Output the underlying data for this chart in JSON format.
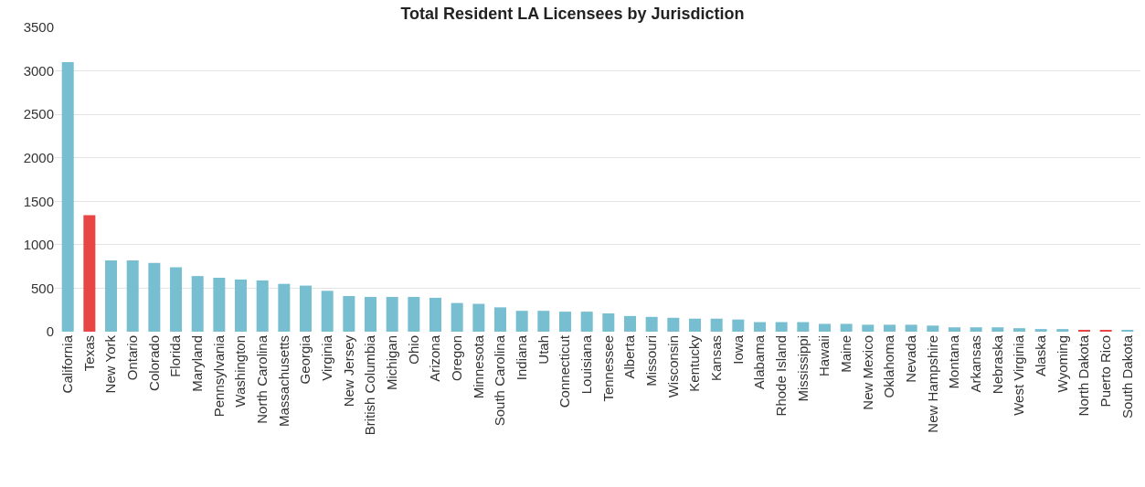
{
  "chart_data": {
    "type": "bar",
    "title": "Total Resident LA Licensees by Jurisdiction",
    "categories": [
      "California",
      "Texas",
      "New York",
      "Ontario",
      "Colorado",
      "Florida",
      "Maryland",
      "Pennsylvania",
      "Washington",
      "North Carolina",
      "Massachusetts",
      "Georgia",
      "Virginia",
      "New Jersey",
      "British Columbia",
      "Michigan",
      "Ohio",
      "Arizona",
      "Oregon",
      "Minnesota",
      "South Carolina",
      "Indiana",
      "Utah",
      "Connecticut",
      "Louisiana",
      "Tennessee",
      "Alberta",
      "Missouri",
      "Wisconsin",
      "Kentucky",
      "Kansas",
      "Iowa",
      "Alabama",
      "Rhode Island",
      "Mississippi",
      "Hawaii",
      "Maine",
      "New Mexico",
      "Oklahoma",
      "Nevada",
      "New Hampshire",
      "Montana",
      "Arkansas",
      "Nebraska",
      "West Virginia",
      "Alaska",
      "Wyoming",
      "North Dakota",
      "Puerto Rico",
      "South Dakota"
    ],
    "values": [
      3100,
      1340,
      820,
      820,
      790,
      740,
      640,
      620,
      600,
      590,
      550,
      530,
      470,
      410,
      400,
      400,
      400,
      390,
      330,
      320,
      280,
      240,
      240,
      230,
      230,
      210,
      180,
      170,
      160,
      150,
      150,
      140,
      110,
      110,
      110,
      90,
      90,
      80,
      80,
      80,
      70,
      50,
      50,
      50,
      40,
      30,
      30,
      20,
      20,
      20
    ],
    "colors": [
      "#77bfd0",
      "#e84545",
      "#77bfd0",
      "#77bfd0",
      "#77bfd0",
      "#77bfd0",
      "#77bfd0",
      "#77bfd0",
      "#77bfd0",
      "#77bfd0",
      "#77bfd0",
      "#77bfd0",
      "#77bfd0",
      "#77bfd0",
      "#77bfd0",
      "#77bfd0",
      "#77bfd0",
      "#77bfd0",
      "#77bfd0",
      "#77bfd0",
      "#77bfd0",
      "#77bfd0",
      "#77bfd0",
      "#77bfd0",
      "#77bfd0",
      "#77bfd0",
      "#77bfd0",
      "#77bfd0",
      "#77bfd0",
      "#77bfd0",
      "#77bfd0",
      "#77bfd0",
      "#77bfd0",
      "#77bfd0",
      "#77bfd0",
      "#77bfd0",
      "#77bfd0",
      "#77bfd0",
      "#77bfd0",
      "#77bfd0",
      "#77bfd0",
      "#77bfd0",
      "#77bfd0",
      "#77bfd0",
      "#77bfd0",
      "#77bfd0",
      "#77bfd0",
      "#e84545",
      "#e84545",
      "#77bfd0"
    ],
    "ylim": [
      0,
      3500
    ],
    "yticks": [
      0,
      500,
      1000,
      1500,
      2000,
      2500,
      3000,
      3500
    ],
    "grid": "y"
  }
}
